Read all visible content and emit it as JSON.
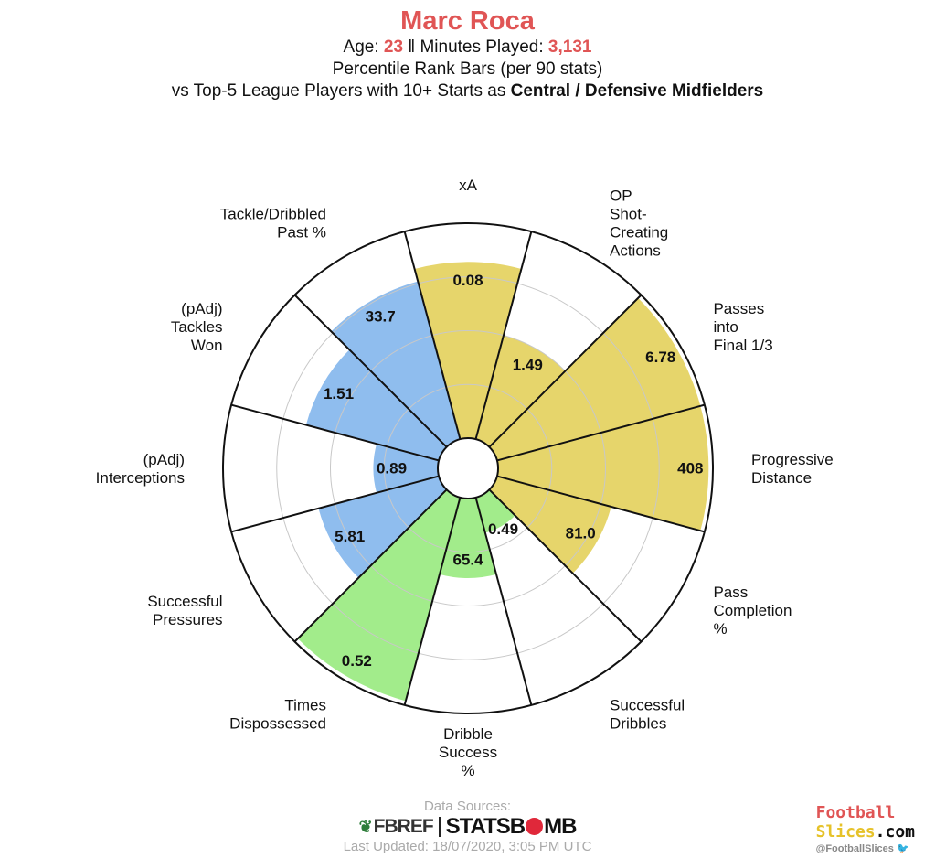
{
  "header": {
    "player": "Marc Roca",
    "age_label": "Age: ",
    "age": "23",
    "separator": " ‖ ",
    "minutes_label": "Minutes Played: ",
    "minutes": "3,131",
    "subtitle": "Percentile Rank Bars (per 90 stats)",
    "comparison_prefix": "vs Top-5 League Players with 10+ Starts as ",
    "comparison_group": "Central / Defensive Midfielders"
  },
  "colors": {
    "attacking": "#e6d56b",
    "dribbling": "#a2ec8b",
    "defending": "#8fbdee",
    "accent": "#e05555"
  },
  "chart_data": {
    "type": "polar-bar",
    "radial_range": [
      0,
      100
    ],
    "grid": true,
    "metrics": [
      {
        "label": [
          "xA"
        ],
        "value": "0.08",
        "percentile": 82,
        "group": "attacking"
      },
      {
        "label": [
          "OP",
          "Shot-",
          "Creating",
          "Actions"
        ],
        "value": "1.49",
        "percentile": 50,
        "group": "attacking"
      },
      {
        "label": [
          "Passes",
          "into",
          "Final 1/3"
        ],
        "value": "6.78",
        "percentile": 98,
        "group": "attacking"
      },
      {
        "label": [
          "Progressive",
          "Distance"
        ],
        "value": "408",
        "percentile": 98,
        "group": "attacking"
      },
      {
        "label": [
          "Pass",
          "Completion",
          "%"
        ],
        "value": "81.0",
        "percentile": 55,
        "group": "attacking"
      },
      {
        "label": [
          "Successful",
          "Dribbles"
        ],
        "value": "0.49",
        "percentile": 17,
        "group": "dribbling"
      },
      {
        "label": [
          "Dribble",
          "Success",
          "%"
        ],
        "value": "65.4",
        "percentile": 37,
        "group": "dribbling"
      },
      {
        "label": [
          "Times",
          "Dispossessed"
        ],
        "value": "0.52",
        "percentile": 98,
        "group": "dribbling"
      },
      {
        "label": [
          "Successful",
          "Pressures"
        ],
        "value": "5.81",
        "percentile": 58,
        "group": "defending"
      },
      {
        "label": [
          "(pAdj)",
          "Interceptions"
        ],
        "value": "0.89",
        "percentile": 30,
        "group": "defending"
      },
      {
        "label": [
          "(pAdj)",
          "Tackles",
          "Won"
        ],
        "value": "1.51",
        "percentile": 64,
        "group": "defending"
      },
      {
        "label": [
          "Tackle/Dribbled",
          "Past %"
        ],
        "value": "33.7",
        "percentile": 76,
        "group": "defending"
      }
    ]
  },
  "footer": {
    "sources_label": "Data Sources:",
    "fbref_logo": "FBREF",
    "statsbomb_logo_a": "STATSB",
    "statsbomb_logo_b": "MB",
    "updated": "Last Updated: 18/07/2020, 3:05 PM UTC"
  },
  "brand": {
    "line1": "Football",
    "line2_a": "Slices",
    "line2_b": ".com",
    "handle": "@FootballSlices",
    "twitter_icon": "twitter-bird-icon"
  }
}
